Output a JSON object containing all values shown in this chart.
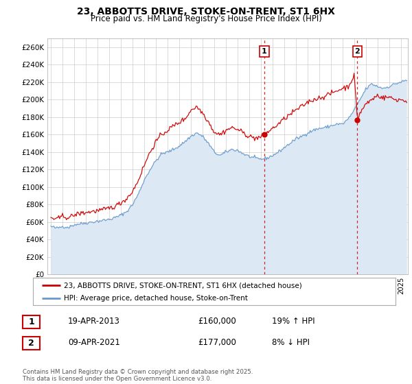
{
  "title": "23, ABBOTTS DRIVE, STOKE-ON-TRENT, ST1 6HX",
  "subtitle": "Price paid vs. HM Land Registry's House Price Index (HPI)",
  "ylim": [
    0,
    270000
  ],
  "yticks": [
    0,
    20000,
    40000,
    60000,
    80000,
    100000,
    120000,
    140000,
    160000,
    180000,
    200000,
    220000,
    240000,
    260000
  ],
  "ytick_labels": [
    "£0",
    "£20K",
    "£40K",
    "£60K",
    "£80K",
    "£100K",
    "£120K",
    "£140K",
    "£160K",
    "£180K",
    "£200K",
    "£220K",
    "£240K",
    "£260K"
  ],
  "xlim_start": 1994.7,
  "xlim_end": 2025.6,
  "line1_color": "#cc0000",
  "line2_color": "#6699cc",
  "line2_fill_color": "#dde8f5",
  "transaction1_x": 2013.29,
  "transaction1_y": 160000,
  "transaction2_x": 2021.27,
  "transaction2_y": 177000,
  "vline_color": "#cc0000",
  "footer_text": "Contains HM Land Registry data © Crown copyright and database right 2025.\nThis data is licensed under the Open Government Licence v3.0.",
  "legend_line1": "23, ABBOTTS DRIVE, STOKE-ON-TRENT, ST1 6HX (detached house)",
  "legend_line2": "HPI: Average price, detached house, Stoke-on-Trent",
  "table_row1": [
    "1",
    "19-APR-2013",
    "£160,000",
    "19% ↑ HPI"
  ],
  "table_row2": [
    "2",
    "09-APR-2021",
    "£177,000",
    "8% ↓ HPI"
  ],
  "hpi_base": [
    [
      1995.0,
      55000
    ],
    [
      1995.5,
      53000
    ],
    [
      1996.0,
      55000
    ],
    [
      1996.5,
      54000
    ],
    [
      1997.0,
      57000
    ],
    [
      1997.5,
      58000
    ],
    [
      1998.0,
      59000
    ],
    [
      1998.5,
      60000
    ],
    [
      1999.0,
      61000
    ],
    [
      1999.5,
      62000
    ],
    [
      2000.0,
      63000
    ],
    [
      2000.5,
      65000
    ],
    [
      2001.0,
      68000
    ],
    [
      2001.5,
      72000
    ],
    [
      2002.0,
      80000
    ],
    [
      2002.5,
      92000
    ],
    [
      2003.0,
      108000
    ],
    [
      2003.5,
      120000
    ],
    [
      2004.0,
      130000
    ],
    [
      2004.5,
      138000
    ],
    [
      2005.0,
      140000
    ],
    [
      2005.5,
      143000
    ],
    [
      2006.0,
      147000
    ],
    [
      2006.5,
      152000
    ],
    [
      2007.0,
      158000
    ],
    [
      2007.5,
      162000
    ],
    [
      2008.0,
      158000
    ],
    [
      2008.5,
      150000
    ],
    [
      2009.0,
      140000
    ],
    [
      2009.5,
      136000
    ],
    [
      2010.0,
      140000
    ],
    [
      2010.5,
      143000
    ],
    [
      2011.0,
      142000
    ],
    [
      2011.5,
      138000
    ],
    [
      2012.0,
      135000
    ],
    [
      2012.5,
      133000
    ],
    [
      2013.0,
      132000
    ],
    [
      2013.5,
      133000
    ],
    [
      2014.0,
      136000
    ],
    [
      2014.5,
      140000
    ],
    [
      2015.0,
      145000
    ],
    [
      2015.5,
      150000
    ],
    [
      2016.0,
      155000
    ],
    [
      2016.5,
      158000
    ],
    [
      2017.0,
      162000
    ],
    [
      2017.5,
      165000
    ],
    [
      2018.0,
      167000
    ],
    [
      2018.5,
      168000
    ],
    [
      2019.0,
      170000
    ],
    [
      2019.5,
      172000
    ],
    [
      2020.0,
      172000
    ],
    [
      2020.5,
      178000
    ],
    [
      2021.0,
      188000
    ],
    [
      2021.5,
      200000
    ],
    [
      2022.0,
      212000
    ],
    [
      2022.5,
      218000
    ],
    [
      2023.0,
      215000
    ],
    [
      2023.5,
      213000
    ],
    [
      2024.0,
      215000
    ],
    [
      2024.5,
      218000
    ],
    [
      2025.0,
      220000
    ],
    [
      2025.5,
      222000
    ]
  ],
  "price_base": [
    [
      1995.0,
      65000
    ],
    [
      1995.5,
      63000
    ],
    [
      1996.0,
      67000
    ],
    [
      1996.5,
      65000
    ],
    [
      1997.0,
      68000
    ],
    [
      1997.5,
      70000
    ],
    [
      1998.0,
      71000
    ],
    [
      1998.5,
      72000
    ],
    [
      1999.0,
      73000
    ],
    [
      1999.5,
      74000
    ],
    [
      2000.0,
      76000
    ],
    [
      2000.5,
      78000
    ],
    [
      2001.0,
      82000
    ],
    [
      2001.5,
      87000
    ],
    [
      2002.0,
      95000
    ],
    [
      2002.5,
      108000
    ],
    [
      2003.0,
      125000
    ],
    [
      2003.5,
      140000
    ],
    [
      2004.0,
      152000
    ],
    [
      2004.5,
      160000
    ],
    [
      2005.0,
      165000
    ],
    [
      2005.5,
      170000
    ],
    [
      2006.0,
      174000
    ],
    [
      2006.5,
      178000
    ],
    [
      2007.0,
      188000
    ],
    [
      2007.5,
      192000
    ],
    [
      2008.0,
      185000
    ],
    [
      2008.5,
      175000
    ],
    [
      2009.0,
      163000
    ],
    [
      2009.5,
      160000
    ],
    [
      2010.0,
      165000
    ],
    [
      2010.5,
      168000
    ],
    [
      2011.0,
      166000
    ],
    [
      2011.5,
      162000
    ],
    [
      2012.0,
      158000
    ],
    [
      2012.5,
      156000
    ],
    [
      2013.0,
      157000
    ],
    [
      2013.29,
      160000
    ],
    [
      2013.5,
      162000
    ],
    [
      2014.0,
      167000
    ],
    [
      2014.5,
      172000
    ],
    [
      2015.0,
      178000
    ],
    [
      2015.5,
      183000
    ],
    [
      2016.0,
      188000
    ],
    [
      2016.5,
      192000
    ],
    [
      2017.0,
      197000
    ],
    [
      2017.5,
      200000
    ],
    [
      2018.0,
      202000
    ],
    [
      2018.5,
      204000
    ],
    [
      2019.0,
      207000
    ],
    [
      2019.5,
      210000
    ],
    [
      2020.0,
      213000
    ],
    [
      2020.5,
      215000
    ],
    [
      2021.0,
      228000
    ],
    [
      2021.27,
      177000
    ],
    [
      2021.5,
      185000
    ],
    [
      2022.0,
      195000
    ],
    [
      2022.5,
      200000
    ],
    [
      2023.0,
      205000
    ],
    [
      2023.5,
      202000
    ],
    [
      2024.0,
      203000
    ],
    [
      2024.5,
      200000
    ],
    [
      2025.0,
      200000
    ],
    [
      2025.5,
      198000
    ]
  ]
}
